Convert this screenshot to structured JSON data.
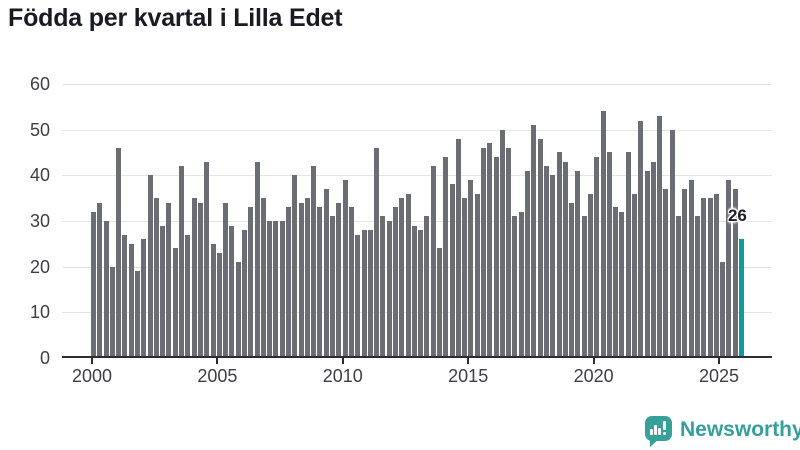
{
  "title": "Födda per kvartal i Lilla Edet",
  "branding": {
    "logo_text": "Newsworthy",
    "logo_color": "#35a09a"
  },
  "colors": {
    "bar": "#6c6c74",
    "highlight": "#12999b",
    "gridline": "#e4e4e7",
    "axis_line": "#2d2d35",
    "axis_text": "#3e3e47",
    "title_text": "#1a1a22"
  },
  "chart_data": {
    "type": "bar",
    "title": "Födda per kvartal i Lilla Edet",
    "x_start_year": 2000,
    "quarters_per_year": 4,
    "x_tick_labels": [
      "2000",
      "2005",
      "2010",
      "2015",
      "2020",
      "2025"
    ],
    "y_tick_labels": [
      "0",
      "10",
      "20",
      "30",
      "40",
      "50",
      "60"
    ],
    "y_ticks": [
      0,
      10,
      20,
      30,
      40,
      50,
      60
    ],
    "ylim": [
      0,
      60
    ],
    "grid": "horizontal",
    "legend": "none",
    "values": [
      32,
      34,
      30,
      20,
      46,
      27,
      25,
      19,
      26,
      40,
      35,
      29,
      34,
      24,
      42,
      27,
      35,
      34,
      43,
      25,
      23,
      34,
      29,
      21,
      28,
      33,
      43,
      35,
      30,
      30,
      30,
      33,
      40,
      34,
      35,
      42,
      33,
      37,
      31,
      34,
      39,
      33,
      27,
      28,
      28,
      46,
      31,
      30,
      33,
      35,
      36,
      29,
      28,
      31,
      42,
      24,
      44,
      38,
      48,
      35,
      39,
      36,
      46,
      47,
      44,
      50,
      46,
      31,
      32,
      41,
      51,
      48,
      42,
      40,
      45,
      43,
      34,
      41,
      31,
      36,
      44,
      54,
      45,
      33,
      32,
      45,
      36,
      52,
      41,
      43,
      53,
      37,
      50,
      31,
      37,
      39,
      31,
      35,
      35,
      36,
      21,
      39,
      37,
      26
    ],
    "highlight_index": 103,
    "annotation": {
      "text": "26",
      "value": 26
    }
  }
}
